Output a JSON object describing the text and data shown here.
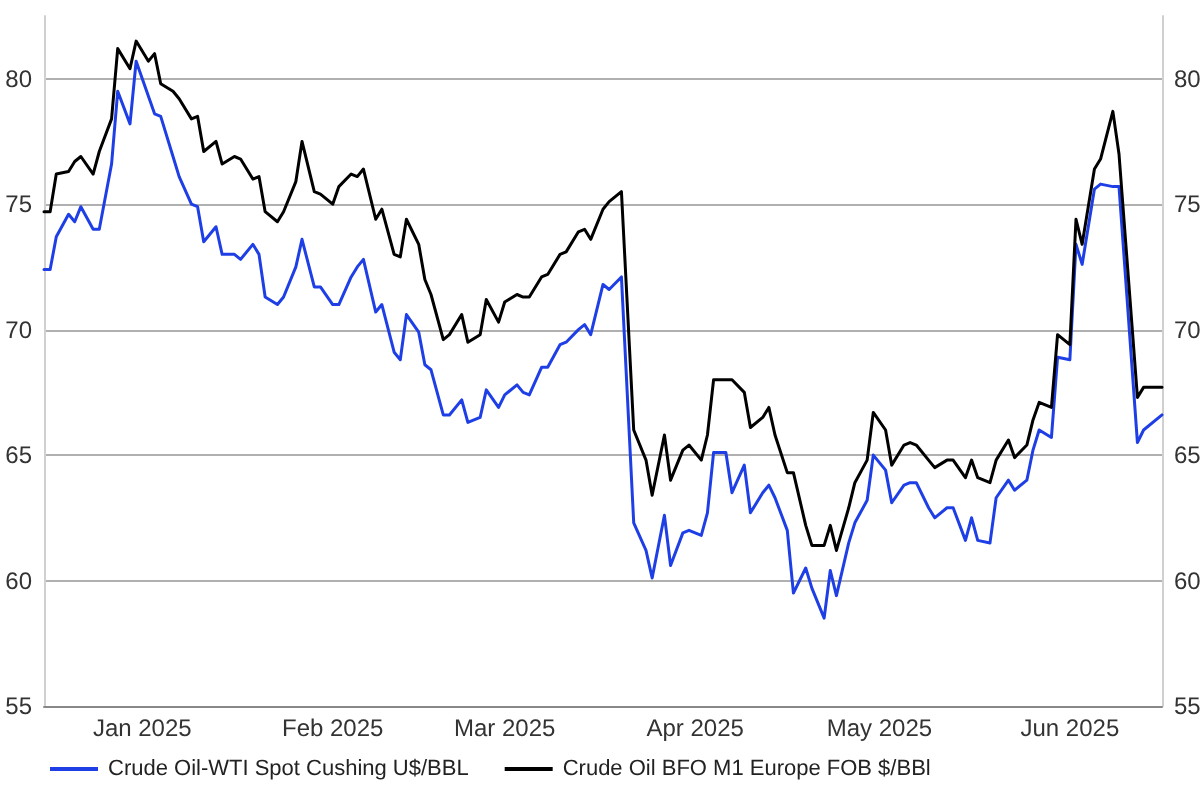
{
  "chart_data": {
    "type": "line",
    "x": [
      "2024-12-16",
      "2024-12-17",
      "2024-12-18",
      "2024-12-20",
      "2024-12-21",
      "2024-12-22",
      "2024-12-24",
      "2024-12-25",
      "2024-12-27",
      "2024-12-28",
      "2024-12-30",
      "2024-12-31",
      "2025-01-02",
      "2025-01-03",
      "2025-01-04",
      "2025-01-06",
      "2025-01-07",
      "2025-01-09",
      "2025-01-10",
      "2025-01-11",
      "2025-01-13",
      "2025-01-14",
      "2025-01-16",
      "2025-01-17",
      "2025-01-19",
      "2025-01-20",
      "2025-01-21",
      "2025-01-23",
      "2025-01-24",
      "2025-01-26",
      "2025-01-27",
      "2025-01-29",
      "2025-01-30",
      "2025-02-01",
      "2025-02-02",
      "2025-02-04",
      "2025-02-05",
      "2025-02-06",
      "2025-02-08",
      "2025-02-09",
      "2025-02-11",
      "2025-02-12",
      "2025-02-13",
      "2025-02-15",
      "2025-02-16",
      "2025-02-17",
      "2025-02-19",
      "2025-02-20",
      "2025-02-22",
      "2025-02-23",
      "2025-02-25",
      "2025-02-26",
      "2025-02-28",
      "2025-03-01",
      "2025-03-03",
      "2025-03-04",
      "2025-03-05",
      "2025-03-07",
      "2025-03-08",
      "2025-03-10",
      "2025-03-11",
      "2025-03-13",
      "2025-03-14",
      "2025-03-15",
      "2025-03-17",
      "2025-03-18",
      "2025-03-20",
      "2025-03-22",
      "2025-03-24",
      "2025-03-25",
      "2025-03-27",
      "2025-03-28",
      "2025-03-30",
      "2025-03-31",
      "2025-04-02",
      "2025-04-03",
      "2025-04-04",
      "2025-04-06",
      "2025-04-07",
      "2025-04-09",
      "2025-04-10",
      "2025-04-12",
      "2025-04-13",
      "2025-04-14",
      "2025-04-16",
      "2025-04-17",
      "2025-04-19",
      "2025-04-20",
      "2025-04-22",
      "2025-04-23",
      "2025-04-24",
      "2025-04-26",
      "2025-04-27",
      "2025-04-29",
      "2025-04-30",
      "2025-05-02",
      "2025-05-03",
      "2025-05-05",
      "2025-05-06",
      "2025-05-07",
      "2025-05-09",
      "2025-05-10",
      "2025-05-12",
      "2025-05-13",
      "2025-05-15",
      "2025-05-16",
      "2025-05-17",
      "2025-05-19",
      "2025-05-20",
      "2025-05-22",
      "2025-05-23",
      "2025-05-25",
      "2025-05-26",
      "2025-05-27",
      "2025-05-29",
      "2025-05-30",
      "2025-06-01",
      "2025-06-02",
      "2025-06-03",
      "2025-06-05",
      "2025-06-06",
      "2025-06-08",
      "2025-06-09",
      "2025-06-12",
      "2025-06-13",
      "2025-06-16"
    ],
    "series": [
      {
        "name": "Crude Oil-WTI Spot Cushing U$/BBL",
        "color": "#1f3fe6",
        "values": [
          72.4,
          72.4,
          73.7,
          74.6,
          74.3,
          74.9,
          74.0,
          74.0,
          76.6,
          79.5,
          78.2,
          80.7,
          79.3,
          78.6,
          78.5,
          76.9,
          76.1,
          75.0,
          74.9,
          73.5,
          74.1,
          73.0,
          73.0,
          72.8,
          73.4,
          73.0,
          71.3,
          71.0,
          71.3,
          72.5,
          73.6,
          71.7,
          71.7,
          71.0,
          71.0,
          72.1,
          72.5,
          72.8,
          70.7,
          71.0,
          69.1,
          68.8,
          70.6,
          69.9,
          68.6,
          68.4,
          66.6,
          66.6,
          67.2,
          66.3,
          66.5,
          67.6,
          66.9,
          67.4,
          67.8,
          67.5,
          67.4,
          68.5,
          68.5,
          69.4,
          69.5,
          70.0,
          70.2,
          69.8,
          71.8,
          71.6,
          72.1,
          62.3,
          61.2,
          60.1,
          62.6,
          60.6,
          61.9,
          62.0,
          61.8,
          62.7,
          65.1,
          65.1,
          63.5,
          64.6,
          62.7,
          63.5,
          63.8,
          63.3,
          62.0,
          59.5,
          60.5,
          59.7,
          58.5,
          60.4,
          59.4,
          61.5,
          62.3,
          63.2,
          65.0,
          64.4,
          63.1,
          63.8,
          63.9,
          63.9,
          62.9,
          62.5,
          62.9,
          62.9,
          61.6,
          62.5,
          61.6,
          61.5,
          63.3,
          64.0,
          63.6,
          64.0,
          65.2,
          66.0,
          65.7,
          68.9,
          68.8,
          73.4,
          72.6,
          75.6,
          75.8,
          75.7,
          75.7,
          65.5,
          66.0,
          66.6
        ]
      },
      {
        "name": "Crude Oil BFO M1 Europe FOB $/BBl",
        "color": "#000000",
        "values": [
          74.7,
          74.7,
          76.2,
          76.3,
          76.7,
          76.9,
          76.2,
          77.1,
          78.4,
          81.2,
          80.4,
          81.5,
          80.7,
          81.0,
          79.8,
          79.5,
          79.2,
          78.4,
          78.5,
          77.1,
          77.5,
          76.6,
          76.9,
          76.8,
          76.0,
          76.1,
          74.7,
          74.3,
          74.7,
          75.9,
          77.5,
          75.5,
          75.4,
          75.0,
          75.7,
          76.2,
          76.1,
          76.4,
          74.4,
          74.8,
          73.0,
          72.9,
          74.4,
          73.4,
          72.0,
          71.4,
          69.6,
          69.8,
          70.6,
          69.5,
          69.8,
          71.2,
          70.3,
          71.1,
          71.4,
          71.3,
          71.3,
          72.1,
          72.2,
          73.0,
          73.1,
          73.9,
          74.0,
          73.6,
          74.8,
          75.1,
          75.5,
          66.0,
          64.8,
          63.4,
          65.8,
          64.0,
          65.2,
          65.4,
          64.8,
          65.8,
          68.0,
          68.0,
          68.0,
          67.5,
          66.1,
          66.5,
          66.9,
          65.8,
          64.3,
          64.3,
          62.2,
          61.4,
          61.4,
          62.2,
          61.2,
          62.9,
          63.9,
          64.8,
          66.7,
          66.0,
          64.6,
          65.4,
          65.5,
          65.4,
          64.8,
          64.5,
          64.8,
          64.8,
          64.1,
          64.8,
          64.1,
          63.9,
          64.8,
          65.6,
          64.9,
          65.4,
          66.4,
          67.1,
          66.9,
          69.8,
          69.4,
          74.4,
          73.4,
          76.4,
          76.8,
          78.7,
          77.0,
          67.3,
          67.7,
          67.7
        ]
      }
    ],
    "xlim": [
      "2024-12-16",
      "2025-06-16"
    ],
    "xticks": [
      {
        "value": "2025-01-01",
        "label": "Jan 2025"
      },
      {
        "value": "2025-02-01",
        "label": "Feb 2025"
      },
      {
        "value": "2025-03-01",
        "label": "Mar 2025"
      },
      {
        "value": "2025-04-01",
        "label": "Apr 2025"
      },
      {
        "value": "2025-05-01",
        "label": "May 2025"
      },
      {
        "value": "2025-06-01",
        "label": "Jun 2025"
      }
    ],
    "ylim": [
      55,
      82.5
    ],
    "yticks": [
      55,
      60,
      65,
      70,
      75,
      80
    ],
    "y2lim": [
      55,
      82.5
    ],
    "y2ticks": [
      55,
      60,
      65,
      70,
      75,
      80
    ],
    "grid": "y",
    "legend": "bottom left"
  }
}
